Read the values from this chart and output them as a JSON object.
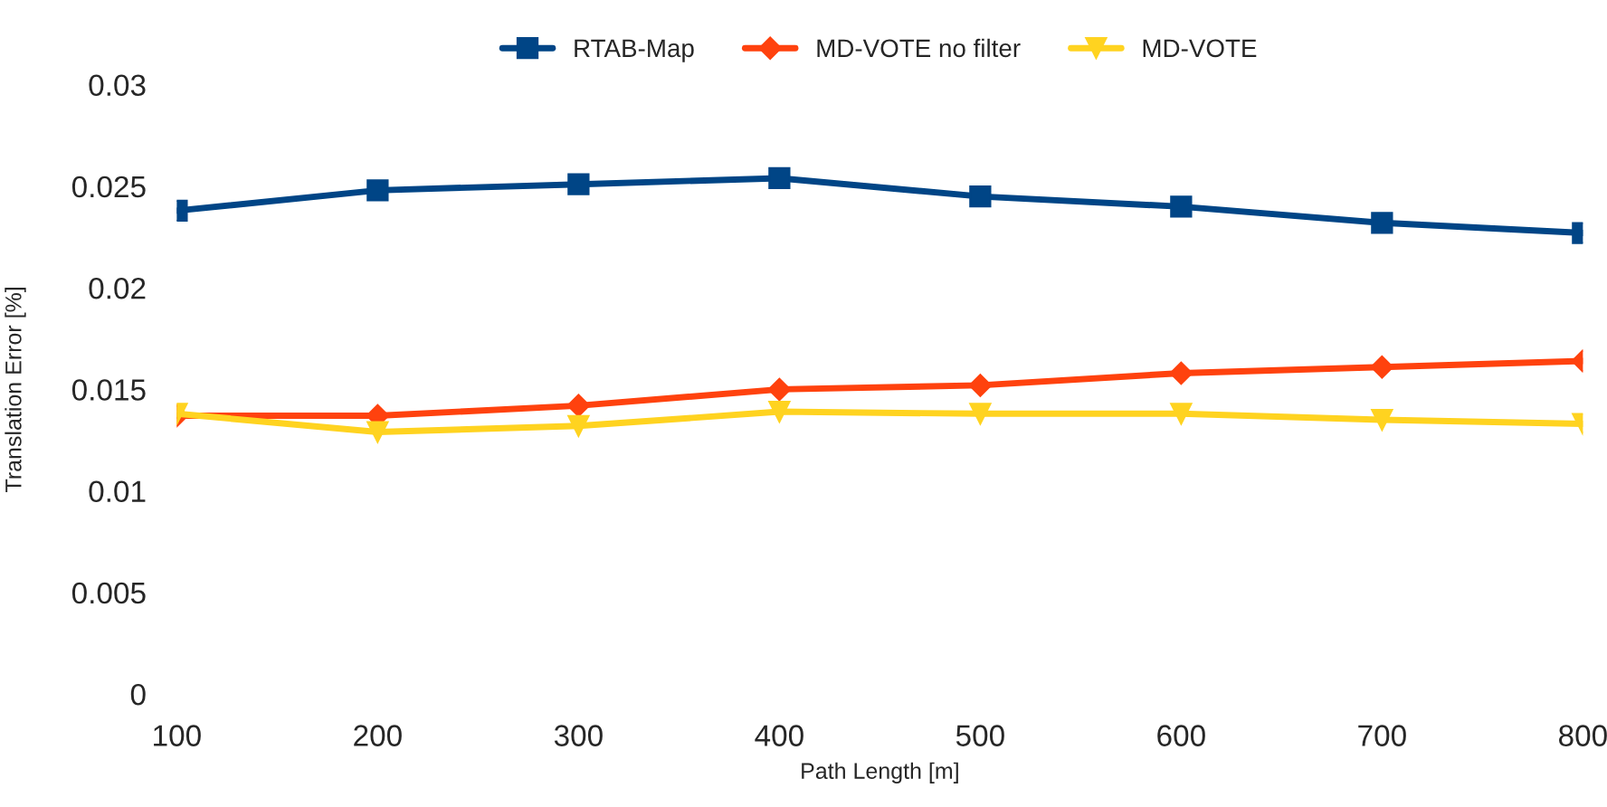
{
  "chart_data": {
    "type": "line",
    "xlabel": "Path Length [m]",
    "ylabel": "Translation Error [%]",
    "x": [
      100,
      200,
      300,
      400,
      500,
      600,
      700,
      800
    ],
    "series": [
      {
        "name": "RTAB-Map",
        "color": "#004586",
        "marker": "square",
        "values": [
          0.0238,
          0.0248,
          0.0251,
          0.0254,
          0.0245,
          0.024,
          0.0232,
          0.0227
        ]
      },
      {
        "name": "MD-VOTE no filter",
        "color": "#ff420e",
        "marker": "diamond",
        "values": [
          0.0137,
          0.0137,
          0.0142,
          0.015,
          0.0152,
          0.0158,
          0.0161,
          0.0164
        ]
      },
      {
        "name": "MD-VOTE",
        "color": "#ffd320",
        "marker": "triangle",
        "values": [
          0.0138,
          0.0129,
          0.0132,
          0.0139,
          0.0138,
          0.0138,
          0.0135,
          0.0133
        ]
      }
    ],
    "xlim": [
      100,
      800
    ],
    "xticks": [
      100,
      200,
      300,
      400,
      500,
      600,
      700,
      800
    ],
    "ylim": [
      0,
      0.03
    ],
    "yticks": [
      {
        "value": 0,
        "label": "0"
      },
      0.005,
      0.01,
      0.015,
      0.02,
      0.025,
      0.03
    ],
    "grid": false,
    "legend": "top",
    "line_style": "solid"
  }
}
